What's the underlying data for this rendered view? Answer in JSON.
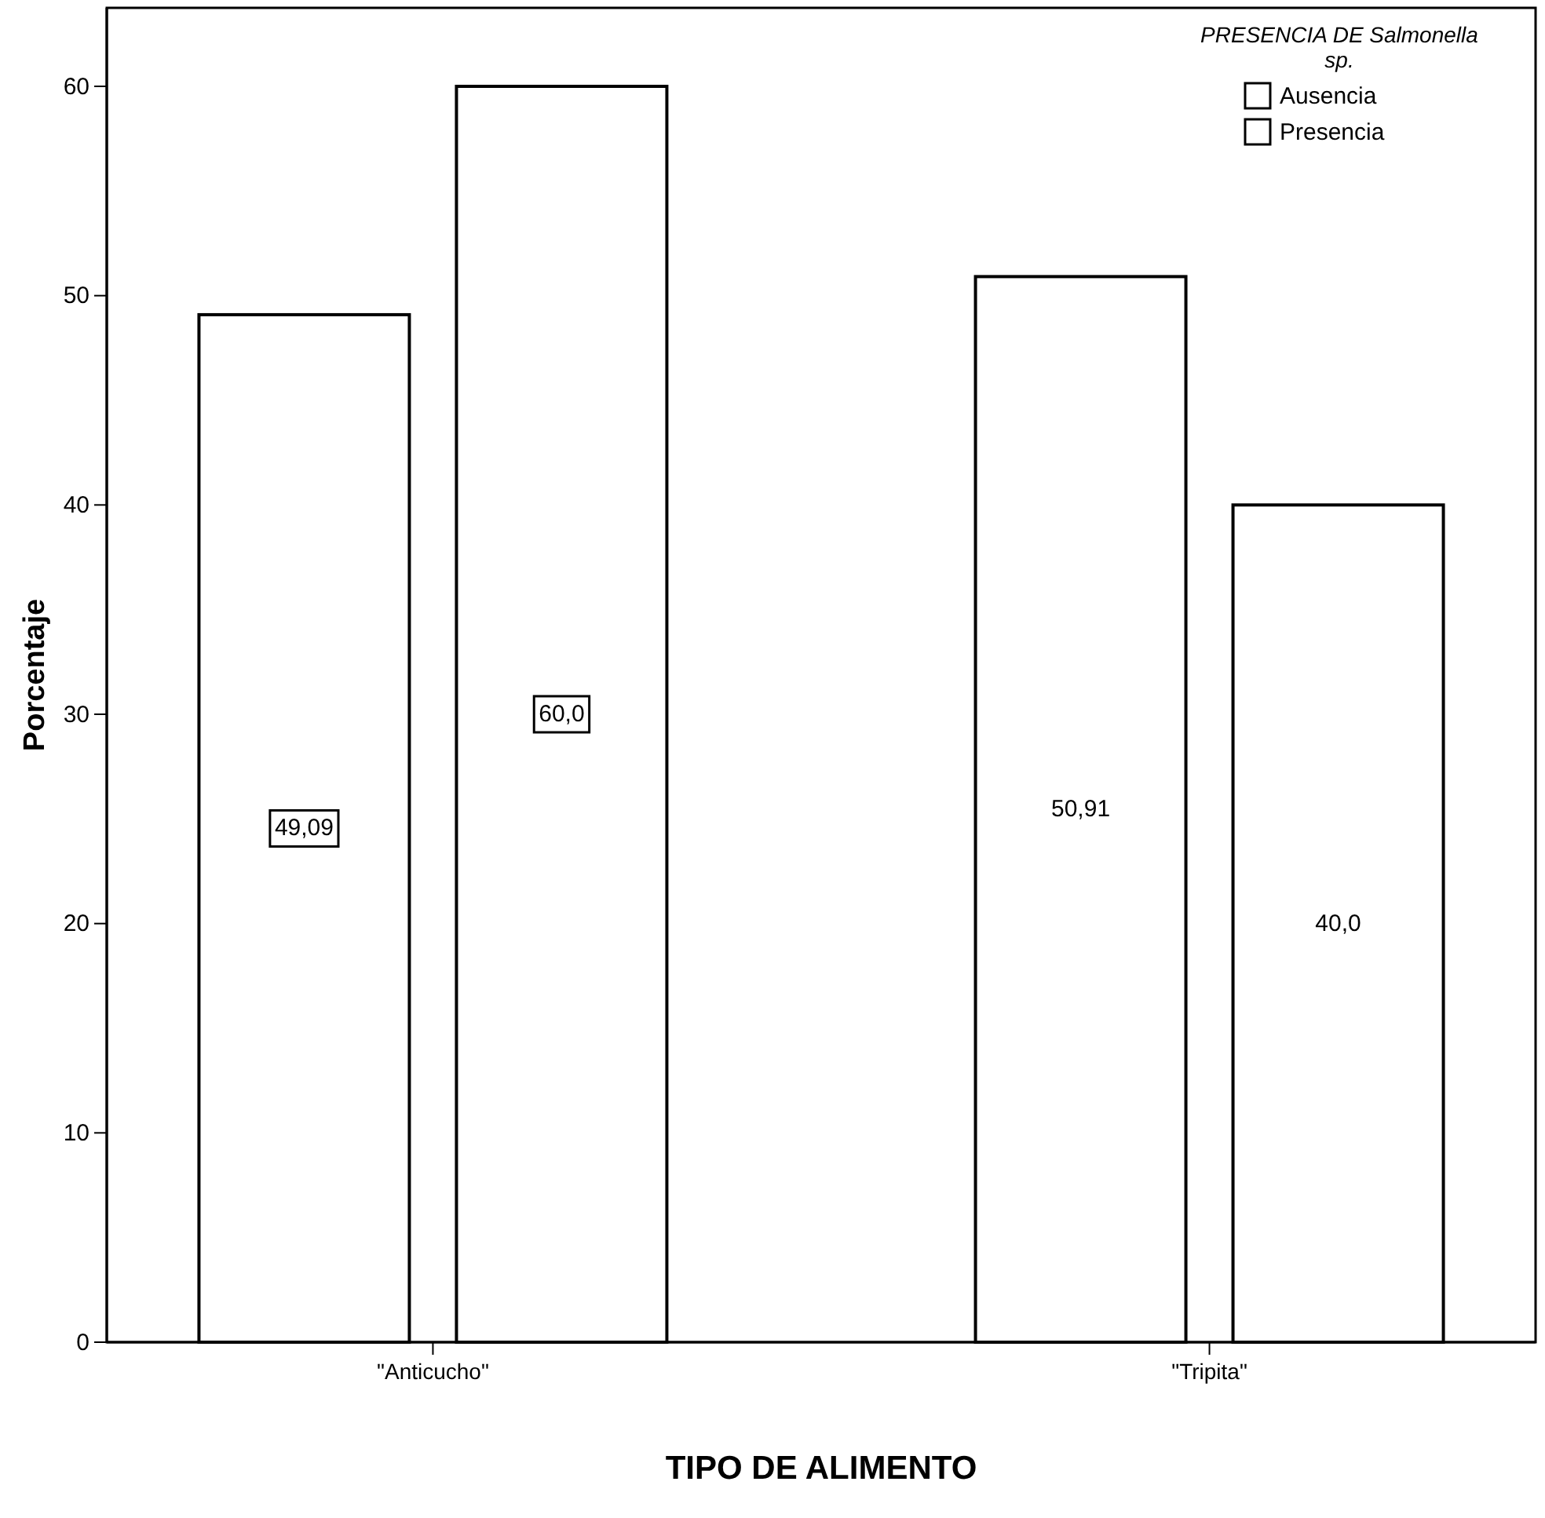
{
  "chart_data": {
    "type": "bar",
    "xlabel": "TIPO DE ALIMENTO",
    "ylabel": "Porcentaje",
    "legend_title": "PRESENCIA DE Salmonella sp.",
    "legend": "top right",
    "categories": [
      "\"Anticucho\"",
      "\"Tripita\""
    ],
    "series": [
      {
        "name": "Ausencia",
        "color": "#ffffff",
        "values": [
          49.09,
          50.91
        ],
        "value_labels": [
          "49,09",
          "50,91"
        ]
      },
      {
        "name": "Presencia",
        "color": "#ffffff",
        "values": [
          60.0,
          40.0
        ],
        "value_labels": [
          "60,0",
          "40,0"
        ]
      }
    ],
    "ylim": [
      0,
      63.75
    ],
    "yticks": [
      0,
      10,
      20,
      30,
      40,
      50,
      60
    ],
    "grid": false
  }
}
